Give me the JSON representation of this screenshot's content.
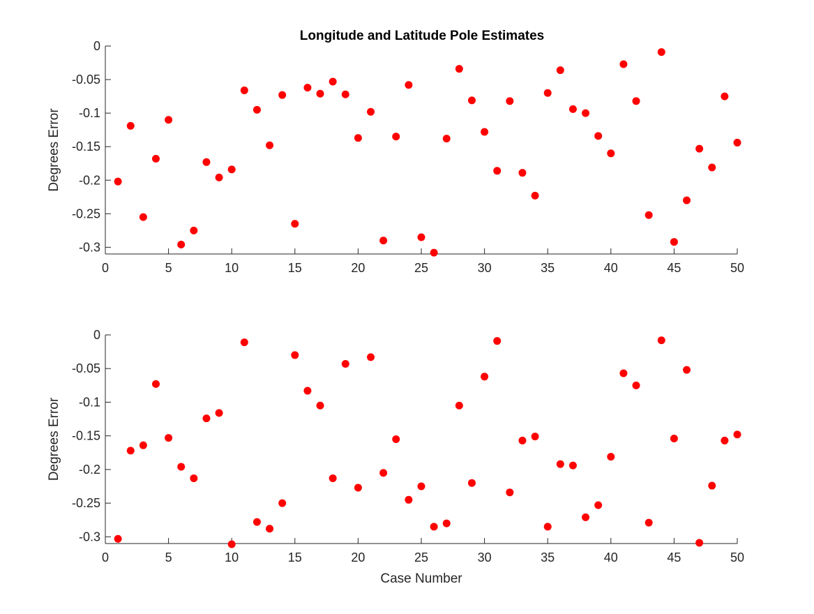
{
  "figure_title": "Longitude and Latitude Pole Estimates",
  "colors": {
    "marker": "#ff0000",
    "axis": "#262626",
    "background": "#ffffff"
  },
  "chart_data": [
    {
      "type": "scatter",
      "title": "Longitude and Latitude Pole Estimates",
      "xlabel": "",
      "ylabel": "Degrees Error",
      "xlim": [
        0,
        50
      ],
      "ylim": [
        -0.31,
        0
      ],
      "xticks": [
        0,
        5,
        10,
        15,
        20,
        25,
        30,
        35,
        40,
        45,
        50
      ],
      "xtick_labels": [
        "0",
        "5",
        "10",
        "15",
        "20",
        "25",
        "30",
        "35",
        "40",
        "45",
        "50"
      ],
      "yticks": [
        0,
        -0.05,
        -0.1,
        -0.15,
        -0.2,
        -0.25,
        -0.3
      ],
      "ytick_labels": [
        "0",
        "-0.05",
        "-0.1",
        "-0.15",
        "-0.2",
        "-0.25",
        "-0.3"
      ],
      "grid": false,
      "x": [
        1,
        2,
        3,
        4,
        5,
        6,
        7,
        8,
        9,
        10,
        11,
        12,
        13,
        14,
        15,
        16,
        17,
        18,
        19,
        20,
        21,
        22,
        23,
        24,
        25,
        26,
        27,
        28,
        29,
        30,
        31,
        32,
        33,
        34,
        35,
        36,
        37,
        38,
        39,
        40,
        41,
        42,
        43,
        44,
        45,
        46,
        47,
        48,
        49,
        50
      ],
      "y": [
        -0.202,
        -0.119,
        -0.255,
        -0.168,
        -0.11,
        -0.296,
        -0.275,
        -0.173,
        -0.196,
        -0.184,
        -0.066,
        -0.095,
        -0.148,
        -0.073,
        -0.265,
        -0.062,
        -0.071,
        -0.053,
        -0.072,
        -0.137,
        -0.098,
        -0.29,
        -0.135,
        -0.058,
        -0.285,
        -0.308,
        -0.138,
        -0.034,
        -0.081,
        -0.128,
        -0.186,
        -0.082,
        -0.189,
        -0.223,
        -0.07,
        -0.036,
        -0.094,
        -0.1,
        -0.134,
        -0.16,
        -0.027,
        -0.082,
        -0.252,
        -0.009,
        -0.292,
        -0.23,
        -0.153,
        -0.181,
        -0.075,
        -0.144
      ]
    },
    {
      "type": "scatter",
      "title": "",
      "xlabel": "Case Number",
      "ylabel": "Degrees Error",
      "xlim": [
        0,
        50
      ],
      "ylim": [
        -0.31,
        0
      ],
      "xticks": [
        0,
        5,
        10,
        15,
        20,
        25,
        30,
        35,
        40,
        45,
        50
      ],
      "xtick_labels": [
        "0",
        "5",
        "10",
        "15",
        "20",
        "25",
        "30",
        "35",
        "40",
        "45",
        "50"
      ],
      "yticks": [
        0,
        -0.05,
        -0.1,
        -0.15,
        -0.2,
        -0.25,
        -0.3
      ],
      "ytick_labels": [
        "0",
        "-0.05",
        "-0.1",
        "-0.15",
        "-0.2",
        "-0.25",
        "-0.3"
      ],
      "grid": false,
      "x": [
        1,
        2,
        3,
        4,
        5,
        6,
        7,
        8,
        9,
        10,
        11,
        12,
        13,
        14,
        15,
        16,
        17,
        18,
        19,
        20,
        21,
        22,
        23,
        24,
        25,
        26,
        27,
        28,
        29,
        30,
        31,
        32,
        33,
        34,
        35,
        36,
        37,
        38,
        39,
        40,
        41,
        42,
        43,
        44,
        45,
        46,
        47,
        48,
        49,
        50
      ],
      "y": [
        -0.303,
        -0.172,
        -0.164,
        -0.073,
        -0.153,
        -0.196,
        -0.213,
        -0.124,
        -0.116,
        -0.311,
        -0.011,
        -0.278,
        -0.288,
        -0.25,
        -0.03,
        -0.083,
        -0.105,
        -0.213,
        -0.043,
        -0.227,
        -0.033,
        -0.205,
        -0.155,
        -0.245,
        -0.225,
        -0.285,
        -0.28,
        -0.105,
        -0.22,
        -0.062,
        -0.009,
        -0.234,
        -0.157,
        -0.151,
        -0.285,
        -0.192,
        -0.194,
        -0.271,
        -0.253,
        -0.181,
        -0.057,
        -0.075,
        -0.279,
        -0.008,
        -0.154,
        -0.052,
        -0.309,
        -0.224,
        -0.157,
        -0.148
      ]
    }
  ]
}
